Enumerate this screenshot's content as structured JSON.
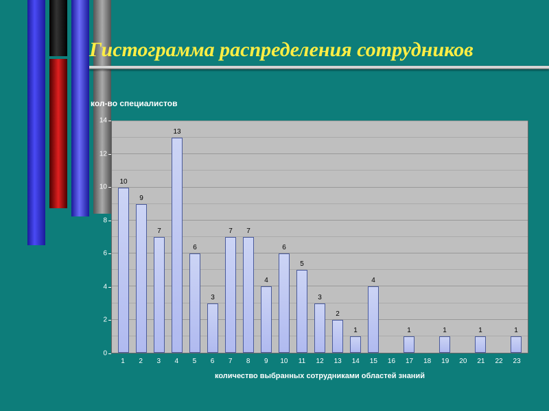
{
  "slide": {
    "title": "Гистограмма распределения сотрудников",
    "background_color": "#0d7d7a",
    "title_color": "#ffee44",
    "title_fontsize": 30,
    "title_font": "Times New Roman italic",
    "underline_color_gradient": [
      "#888888",
      "#ffffff",
      "#777777"
    ]
  },
  "decorative_bars": {
    "colors": [
      "#1a1a99",
      "#000000",
      "#e02020",
      "#1a1a99",
      "#888888"
    ]
  },
  "chart": {
    "type": "bar",
    "title": "кол-во специалистов",
    "title_fontsize": 12,
    "title_color": "#ffffff",
    "x_axis_title": "количество выбранных сотрудниками областей знаний",
    "x_axis_title_fontsize": 11,
    "x_axis_title_color": "#ffffff",
    "categories": [
      "1",
      "2",
      "3",
      "4",
      "5",
      "6",
      "7",
      "8",
      "9",
      "10",
      "11",
      "12",
      "13",
      "14",
      "15",
      "16",
      "17",
      "18",
      "19",
      "20",
      "21",
      "22",
      "23"
    ],
    "values": [
      10,
      9,
      7,
      13,
      6,
      3,
      7,
      7,
      4,
      6,
      5,
      3,
      2,
      1,
      4,
      0,
      1,
      0,
      1,
      0,
      1,
      0,
      1
    ],
    "bar_labels": [
      "10",
      "9",
      "7",
      "13",
      "6",
      "3",
      "7",
      "7",
      "4",
      "6",
      "5",
      "3",
      "2",
      "1",
      "4",
      "",
      "1",
      "",
      "1",
      "",
      "1",
      "",
      "1"
    ],
    "ylim": [
      0,
      14
    ],
    "ytick_step": 2,
    "yticks": [
      0,
      2,
      4,
      6,
      8,
      10,
      12,
      14
    ],
    "bar_color": "#b8c2f0",
    "bar_border_color": "#4a5a9a",
    "plot_background": "#bfbfbf",
    "grid_color": "#999999",
    "axis_label_color": "#ffffff",
    "axis_label_fontsize": 10,
    "bar_width_ratio": 0.6
  }
}
